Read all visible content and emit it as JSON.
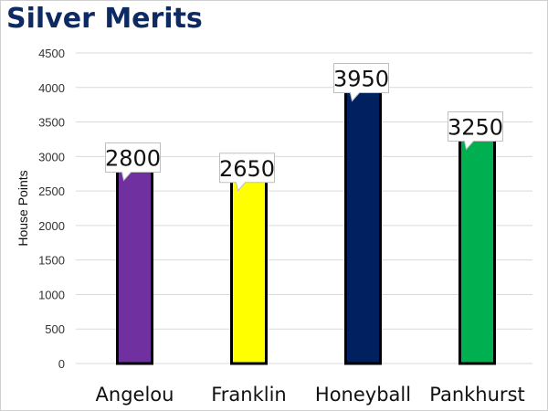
{
  "title": "Silver Merits",
  "chart_data": {
    "type": "bar",
    "title": "Silver Merits",
    "xlabel": "",
    "ylabel": "House Points",
    "ylim": [
      0,
      4500
    ],
    "yticks": [
      0,
      500,
      1000,
      1500,
      2000,
      2500,
      3000,
      3500,
      4000,
      4500
    ],
    "categories": [
      "Angelou",
      "Franklin",
      "Honeyball",
      "Pankhurst"
    ],
    "values": [
      2800,
      2650,
      3950,
      3250
    ],
    "data_labels": [
      "2800",
      "2650",
      "3950",
      "3250"
    ],
    "colors": [
      "#7030a0",
      "#ffff00",
      "#002060",
      "#00b050"
    ],
    "grid": true,
    "legend": "none"
  }
}
